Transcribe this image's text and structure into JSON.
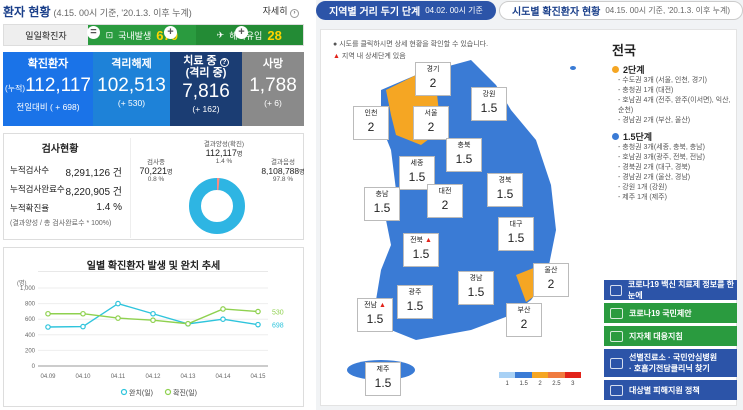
{
  "left": {
    "title": "환자 현황",
    "subtitle": "(4.15. 00시 기준, '20.1.3. 이후 누계)",
    "detail": "자세히",
    "daily": {
      "label": "일일확진자",
      "domestic_label": "국내발생",
      "domestic": "670",
      "overseas_label": "해외유입",
      "overseas": "28"
    },
    "boxes": [
      {
        "head": "확진환자",
        "prefix": "(누적)",
        "value": "112,117",
        "sub": "전일대비 ( + 698)"
      },
      {
        "head": "격리해제",
        "value": "102,513",
        "sub": "(+ 530)"
      },
      {
        "head": "치료 중",
        "head2": "(격리 중)",
        "value": "7,816",
        "sub": "(+ 162)"
      },
      {
        "head": "사망",
        "value": "1,788",
        "sub": "(+ 6)"
      }
    ],
    "tests": {
      "title": "검사현황",
      "rows": [
        {
          "label": "누적검사수",
          "value": "8,291,126",
          "unit": "건"
        },
        {
          "label": "누적검사완료수",
          "value": "8,220,905",
          "unit": "건"
        },
        {
          "label": "누적확진율",
          "value": "1.4",
          "unit": "%"
        }
      ],
      "footnote": "(결과양성 / 총 검사완료수 * 100%)",
      "donut": {
        "top_label": "결과양성(확진)",
        "top_value": "112,117",
        "top_unit": "명",
        "top_pct": "1.4 %",
        "left_label": "검사중",
        "left_value": "70,221",
        "left_unit": "명",
        "left_pct": "0.8 %",
        "right_label": "결과음성",
        "right_value": "8,108,788",
        "right_unit": "명",
        "right_pct": "97.8 %"
      }
    },
    "trend": {
      "title": "일별 확진환자 발생 및 완치 추세"
    }
  },
  "chart_data": {
    "type": "line",
    "categories": [
      "04.09",
      "04.10",
      "04.11",
      "04.12",
      "04.13",
      "04.14",
      "04.15"
    ],
    "series": [
      {
        "name": "완치(일)",
        "color": "#2ec4dc",
        "values": [
          500,
          505,
          800,
          670,
          540,
          600,
          530
        ]
      },
      {
        "name": "확진(일)",
        "color": "#8fd14f",
        "values": [
          670,
          670,
          614,
          587,
          542,
          731,
          698
        ]
      }
    ],
    "ylim": [
      0,
      1000
    ],
    "yticks": [
      "0",
      "200",
      "400",
      "600",
      "800",
      "1,000"
    ],
    "ylabel": "(명)",
    "end_labels": [
      "698",
      "530"
    ]
  },
  "right": {
    "tab1": "지역별 거리 두기 단계",
    "tab1_time": "04.02. 00시 기준",
    "tab2": "시도별 확진환자 현황",
    "tab2_time": "04.15. 00시 기준, '20.1.3. 이후 누계)",
    "note1": "시도를 클릭하시면 상세 현황을 확인할 수 있습니다.",
    "note2": "지역 내 상세단계 있음",
    "regions": [
      {
        "name": "경기",
        "val": "2"
      },
      {
        "name": "인천",
        "val": "2"
      },
      {
        "name": "서울",
        "val": "2"
      },
      {
        "name": "강원",
        "val": "1.5"
      },
      {
        "name": "충북",
        "val": "1.5"
      },
      {
        "name": "세종",
        "val": "1.5"
      },
      {
        "name": "충남",
        "val": "1.5"
      },
      {
        "name": "대전",
        "val": "2"
      },
      {
        "name": "경북",
        "val": "1.5"
      },
      {
        "name": "대구",
        "val": "1.5"
      },
      {
        "name": "전북",
        "val": "1.5"
      },
      {
        "name": "울산",
        "val": "2"
      },
      {
        "name": "경남",
        "val": "1.5"
      },
      {
        "name": "광주",
        "val": "1.5"
      },
      {
        "name": "부산",
        "val": "2"
      },
      {
        "name": "전남",
        "val": "1.5"
      },
      {
        "name": "제주",
        "val": "1.5"
      }
    ],
    "legend": [
      "1",
      "1.5",
      "2",
      "2.5",
      "3"
    ],
    "country": "전국",
    "lvl2": {
      "title": "2단계",
      "items": [
        "- 수도권 3개 (서울, 인천, 경기)",
        "- 충청권 1개 (대전)",
        "- 호남권 4개 (전주, 완주(이서면), 익산,",
        "  순천)",
        "- 경남권 2개 (부산, 울산)"
      ]
    },
    "lvl15": {
      "title": "1.5단계",
      "items": [
        "- 충청권 3개(세종, 충북, 충남)",
        "- 호남권 3개(광주, 전북, 전남)",
        "- 경북권 2개 (대구, 경북)",
        "- 경남권 2개 (울산, 경남)",
        "- 강원 1개 (강원)",
        "- 제주 1개 (제주)"
      ]
    },
    "buttons": [
      "코로나19 백신 치료제 정보를 한눈에",
      "코로나19 국민제안",
      "지자체 대응지침",
      "선별진료소 · 국민안심병원",
      "· 호흡기전담클리닉 찾기",
      "대상별 피해지원 정책"
    ],
    "colors": {
      "blue": "#3a7bd5",
      "orange": "#f5a623",
      "lightblue": "#a8d1f5",
      "red": "#e2231a"
    }
  }
}
